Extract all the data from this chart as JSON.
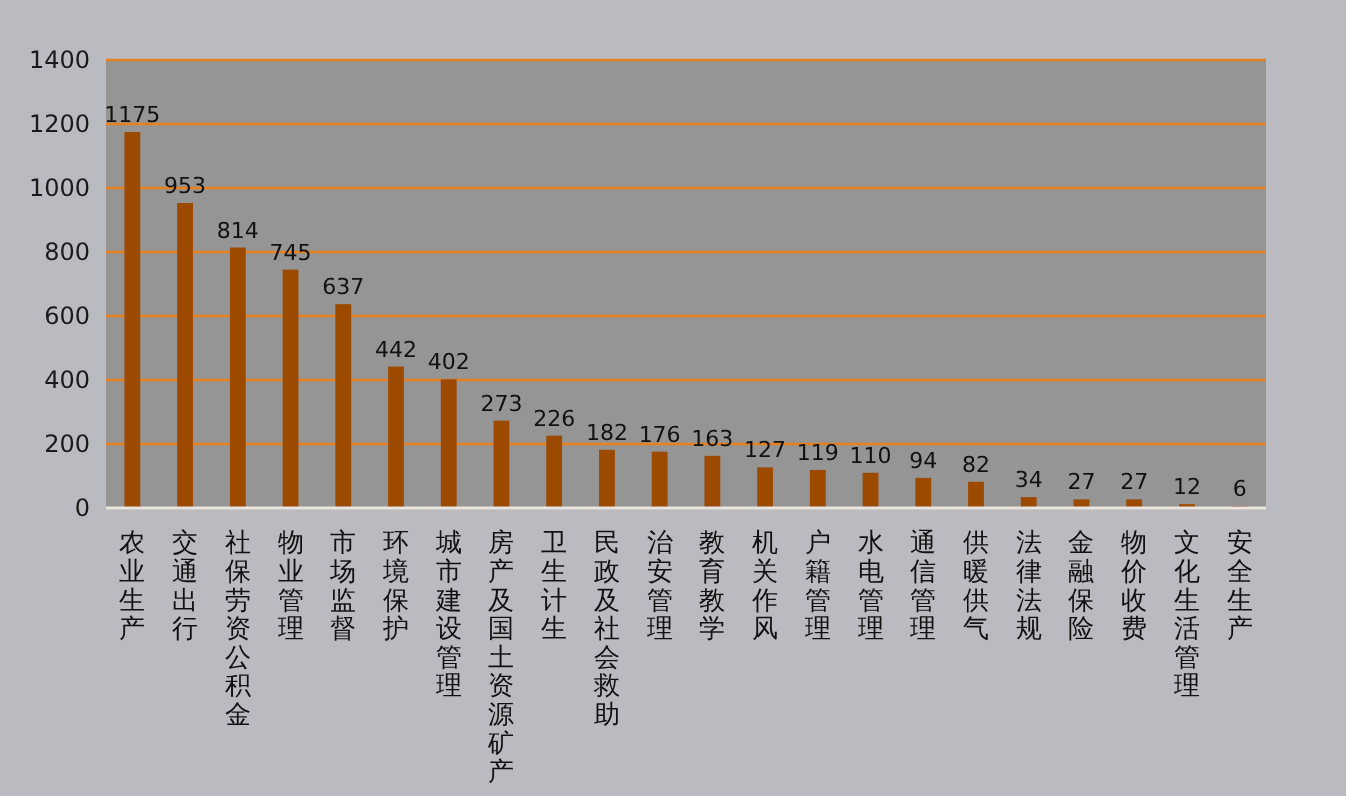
{
  "chart_data": {
    "type": "bar",
    "categories": [
      "农业生产",
      "交通出行",
      "社保劳资公积金",
      "物业管理",
      "市场监督",
      "环境保护",
      "城市建设管理",
      "房产及国土资源矿产",
      "卫生计生",
      "民政及社会救助",
      "治安管理",
      "教育教学",
      "机关作风",
      "户籍管理",
      "水电管理",
      "通信管理",
      "供暖供气",
      "法律法规",
      "金融保险",
      "物价收费",
      "文化生活管理",
      "安全生产"
    ],
    "values": [
      1175,
      953,
      814,
      745,
      637,
      442,
      402,
      273,
      226,
      182,
      176,
      163,
      127,
      119,
      110,
      94,
      82,
      34,
      27,
      27,
      12,
      6
    ],
    "color": "#9c4a00",
    "ylim": [
      0,
      1400
    ],
    "yticks": [
      0,
      200,
      400,
      600,
      800,
      1000,
      1200,
      1400
    ],
    "grid": "y",
    "data_labels": true
  }
}
